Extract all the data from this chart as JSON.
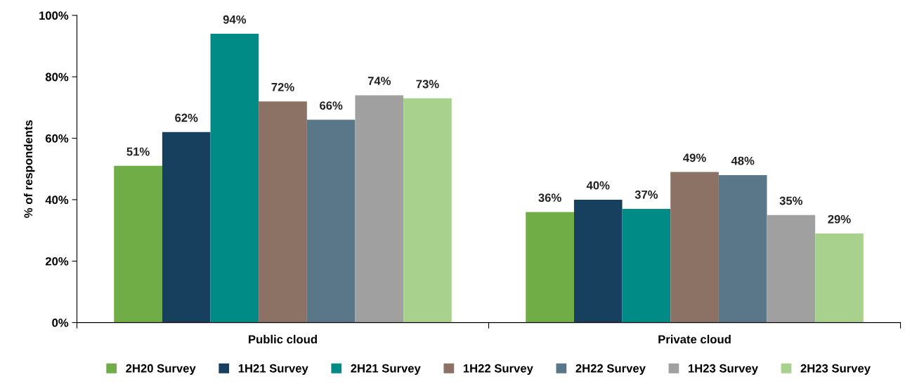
{
  "chart_data": {
    "type": "bar",
    "ylabel": "% of respondents",
    "categories": [
      "Public cloud",
      "Private cloud"
    ],
    "series": [
      {
        "name": "2H20 Survey",
        "color": "#70ad47",
        "values": [
          51,
          36
        ],
        "value_labels": [
          "51%",
          "36%"
        ]
      },
      {
        "name": "1H21 Survey",
        "color": "#17405e",
        "values": [
          62,
          40
        ],
        "value_labels": [
          "62%",
          "40%"
        ]
      },
      {
        "name": "2H21 Survey",
        "color": "#008b86",
        "values": [
          94,
          37
        ],
        "value_labels": [
          "94%",
          "37%"
        ]
      },
      {
        "name": "1H22 Survey",
        "color": "#8b7265",
        "values": [
          72,
          49
        ],
        "value_labels": [
          "72%",
          "49%"
        ]
      },
      {
        "name": "2H22 Survey",
        "color": "#5a7689",
        "values": [
          66,
          48
        ],
        "value_labels": [
          "66%",
          "48%"
        ]
      },
      {
        "name": "1H23 Survey",
        "color": "#a0a0a0",
        "values": [
          74,
          35
        ],
        "value_labels": [
          "74%",
          "35%"
        ]
      },
      {
        "name": "2H23 Survey",
        "color": "#a9d18e",
        "values": [
          73,
          29
        ],
        "value_labels": [
          "73%",
          "29%"
        ]
      }
    ],
    "ylim": [
      0,
      100
    ],
    "yticks": [
      {
        "value": 0,
        "label": "0%"
      },
      {
        "value": 20,
        "label": "20%"
      },
      {
        "value": 40,
        "label": "40%"
      },
      {
        "value": 60,
        "label": "60%"
      },
      {
        "value": 80,
        "label": "80%"
      },
      {
        "value": 100,
        "label": "100%"
      }
    ],
    "grid": false,
    "legend": "bottom"
  }
}
